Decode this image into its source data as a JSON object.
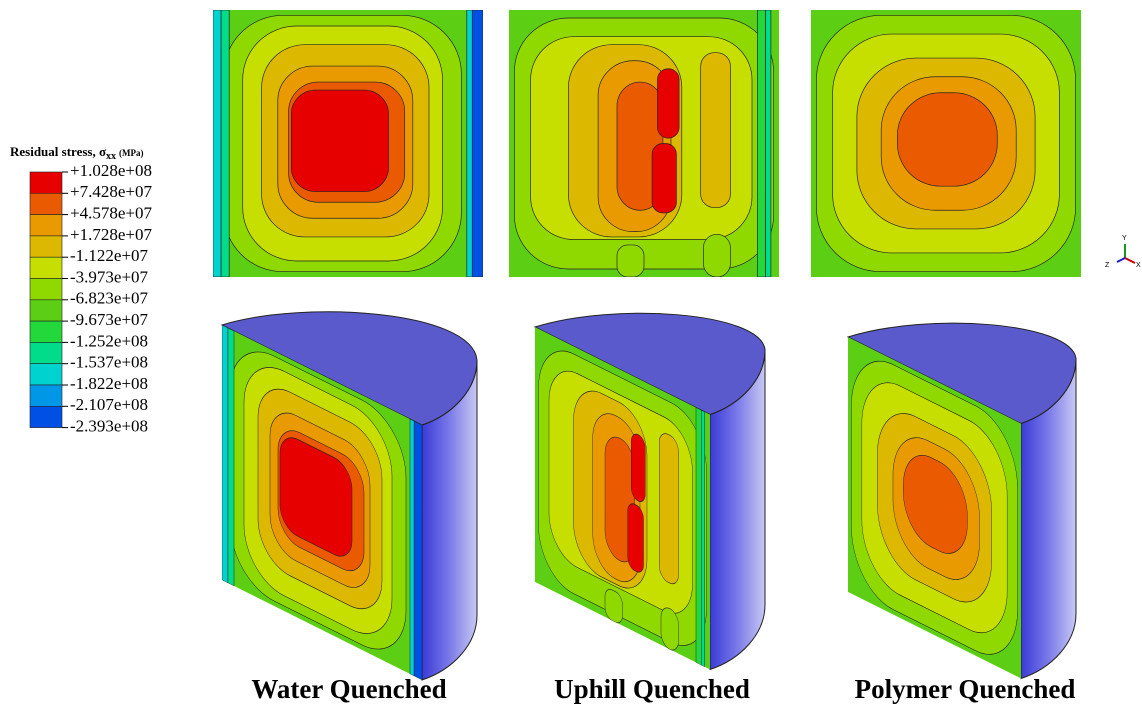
{
  "legend": {
    "title": "Residual stress, σ",
    "subscript": "xx",
    "unit": "(MPa)",
    "labels": [
      "+1.028e+08",
      "+7.428e+07",
      "+4.578e+07",
      "+1.728e+07",
      "-1.122e+07",
      "-3.973e+07",
      "-6.823e+07",
      "-9.673e+07",
      "-1.252e+08",
      "-1.537e+08",
      "-1.822e+08",
      "-2.107e+08",
      "-2.393e+08"
    ],
    "colors": [
      "#e60000",
      "#ea5a00",
      "#e89a00",
      "#ddb800",
      "#c6df00",
      "#8fd800",
      "#5cce14",
      "#22d83a",
      "#00dc8a",
      "#00d2d0",
      "#0098e6",
      "#0050e6"
    ]
  },
  "panels": [
    "Water Quenched",
    "Uphill Quenched",
    "Polymer Quenched"
  ],
  "triad": {
    "y": "Y",
    "z": "Z",
    "x": "X"
  }
}
